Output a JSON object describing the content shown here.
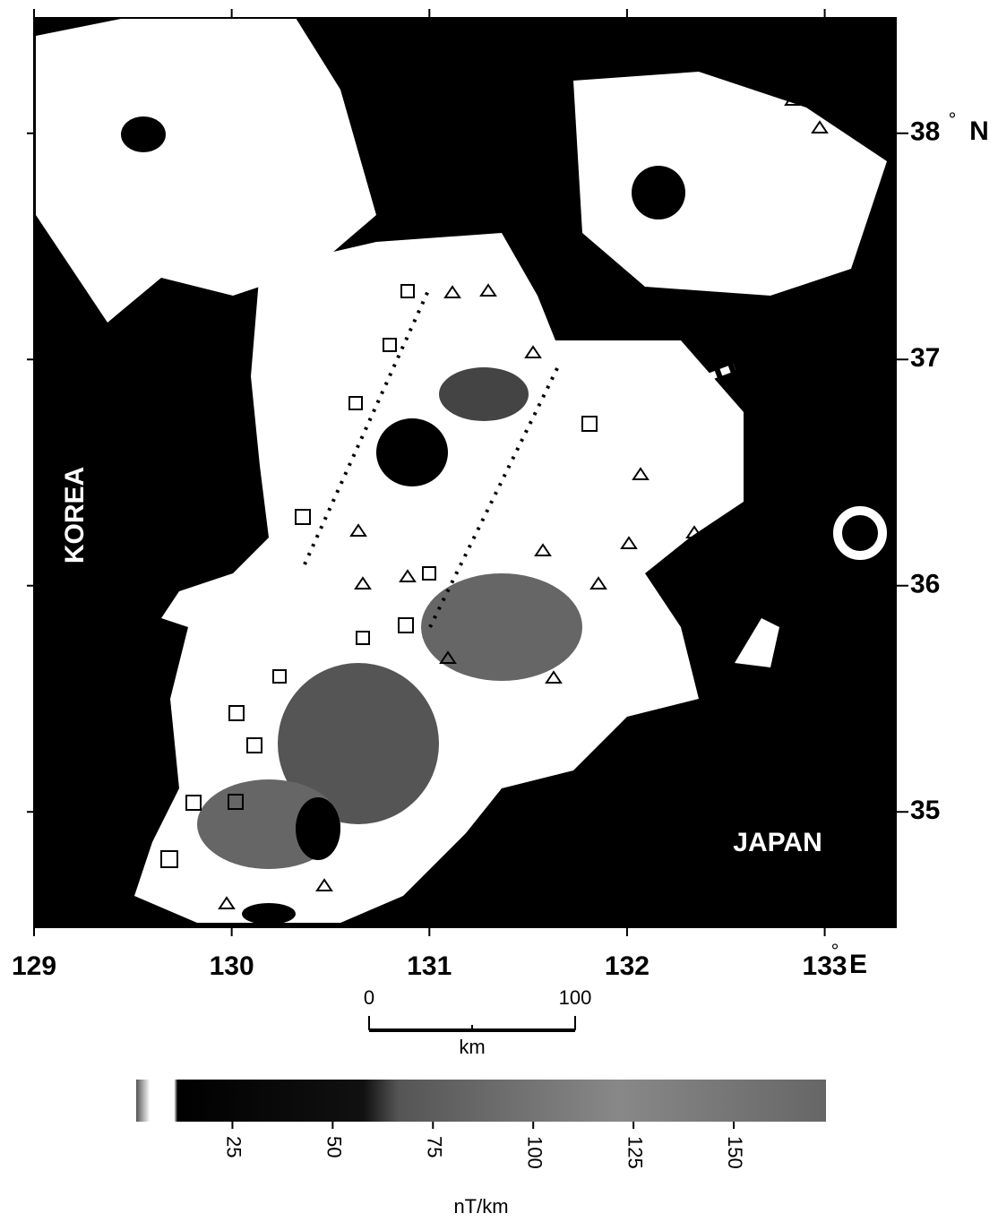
{
  "map": {
    "regions": [
      "KOREA",
      "JAPAN"
    ],
    "lon_ticks": [
      129,
      130,
      131,
      132,
      133
    ],
    "lat_ticks": [
      35,
      36,
      37,
      38
    ],
    "xlim": [
      129,
      133.36
    ],
    "ylim": [
      34.49,
      38.51
    ],
    "degree": "°",
    "lon_unit": "E",
    "lat_unit": "N",
    "scale_bar": {
      "start": "0",
      "end": "100",
      "unit": "km",
      "range": [
        0,
        100
      ]
    },
    "colorbar": {
      "ticks": [
        25,
        50,
        75,
        100,
        125,
        150
      ],
      "lim": [
        1,
        173
      ],
      "label": "nT/km"
    }
  }
}
